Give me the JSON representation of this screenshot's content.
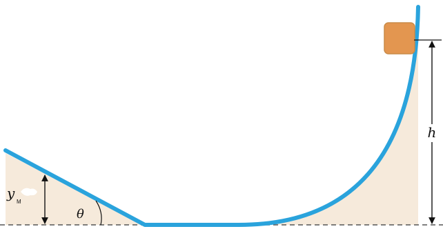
{
  "labels": {
    "height": "h",
    "angle": "θ",
    "max_height": "y",
    "max_height_sub": "M"
  },
  "colors": {
    "track": "#2aa3dc",
    "ground_fill": "#f6eadb",
    "block_fill": "#e39650",
    "block_edge": "#c98b49",
    "dimension_lines": "#111111",
    "baseline": "#555555"
  }
}
